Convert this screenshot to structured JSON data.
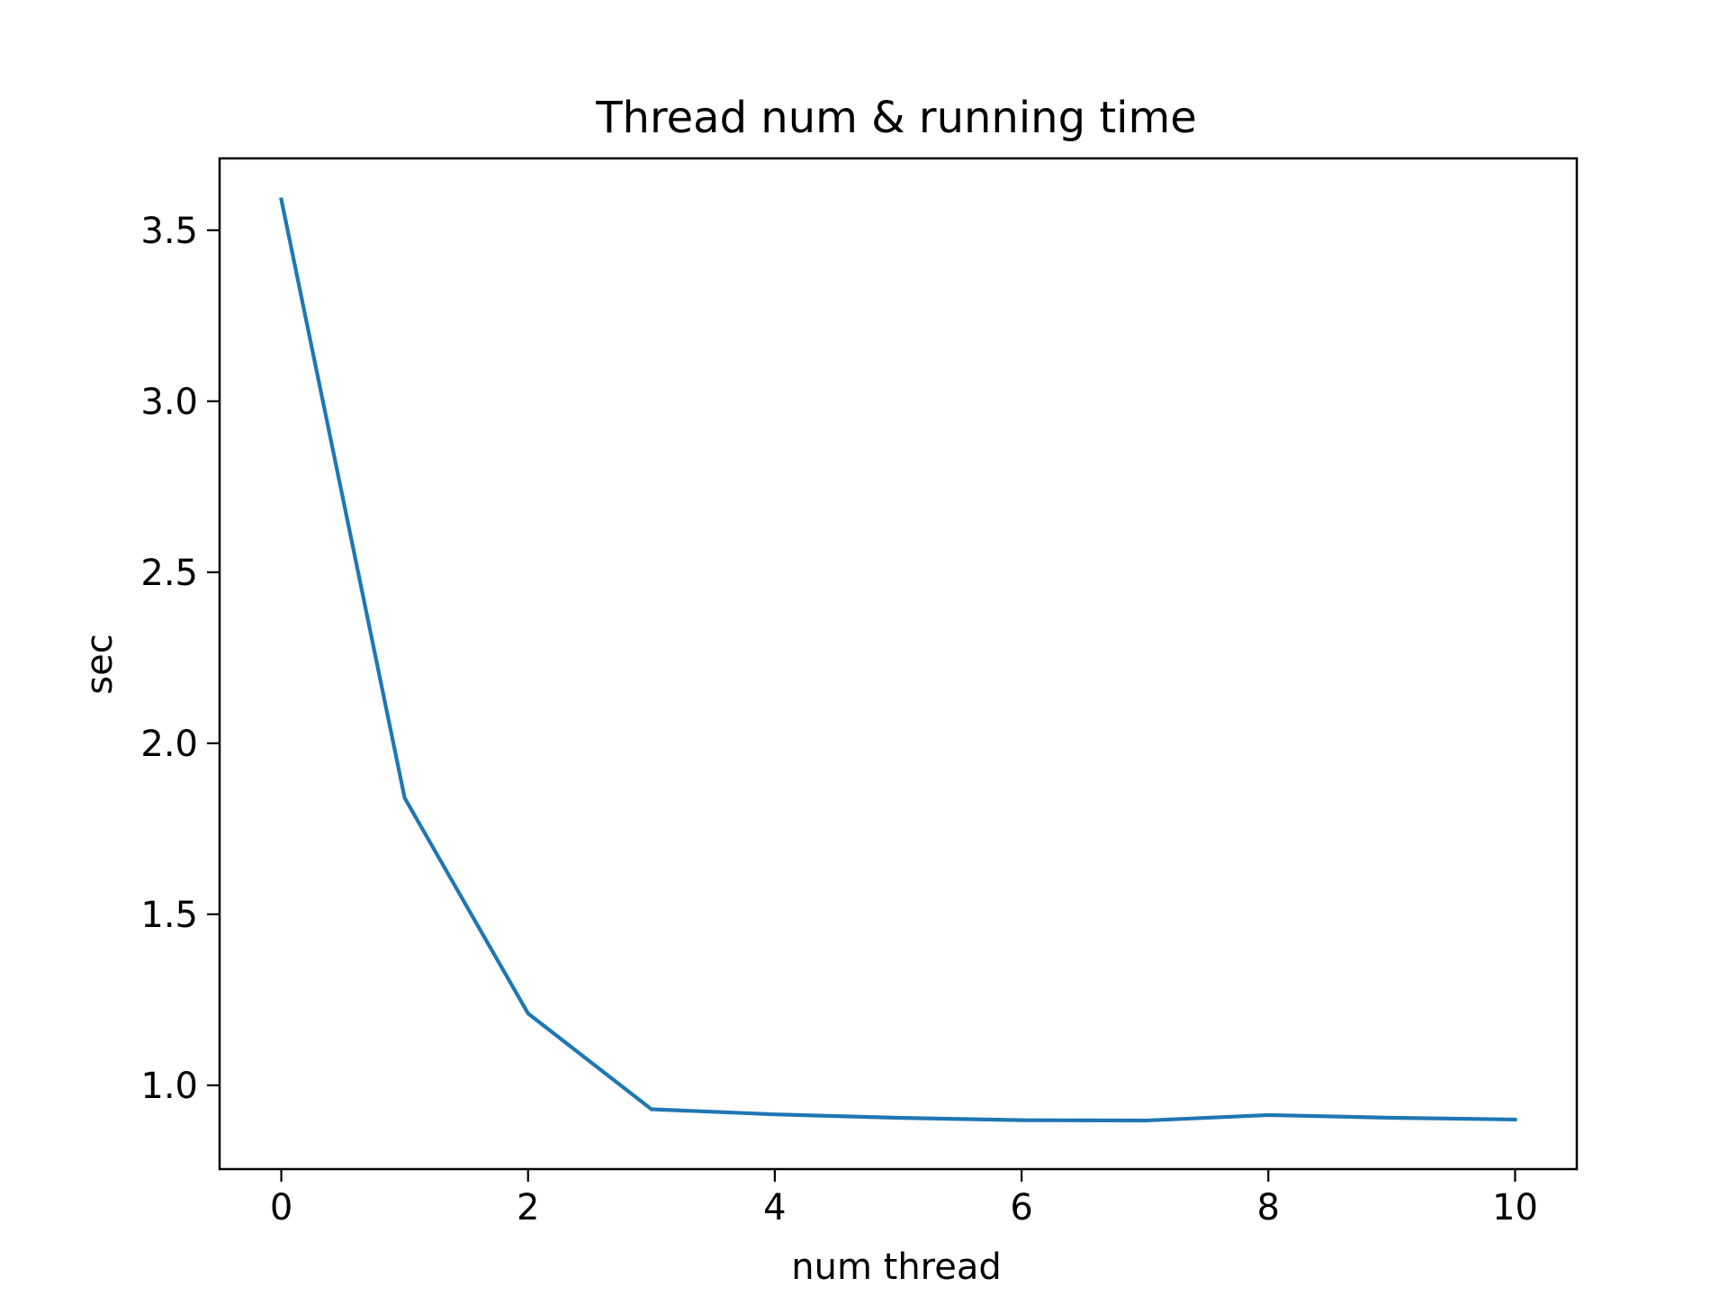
{
  "chart_data": {
    "type": "line",
    "title": "Thread num & running time",
    "xlabel": "num thread",
    "ylabel": "sec",
    "x": [
      0,
      1,
      2,
      3,
      4,
      5,
      6,
      7,
      8,
      9,
      10
    ],
    "series": [
      {
        "values": [
          3.59,
          1.84,
          1.21,
          0.93,
          0.915,
          0.905,
          0.898,
          0.897,
          0.913,
          0.905,
          0.9
        ],
        "color": "#1f77b4"
      }
    ],
    "xlim": [
      -0.5,
      10.5
    ],
    "ylim": [
      0.755,
      3.71
    ],
    "xticks": [
      0,
      2,
      4,
      6,
      8,
      10
    ],
    "xtick_labels": [
      "0",
      "2",
      "4",
      "6",
      "8",
      "10"
    ],
    "yticks": [
      1.0,
      1.5,
      2.0,
      2.5,
      3.0,
      3.5
    ],
    "ytick_labels": [
      "1.0",
      "1.5",
      "2.0",
      "2.5",
      "3.0",
      "3.5"
    ],
    "grid": false,
    "legend": "none"
  }
}
